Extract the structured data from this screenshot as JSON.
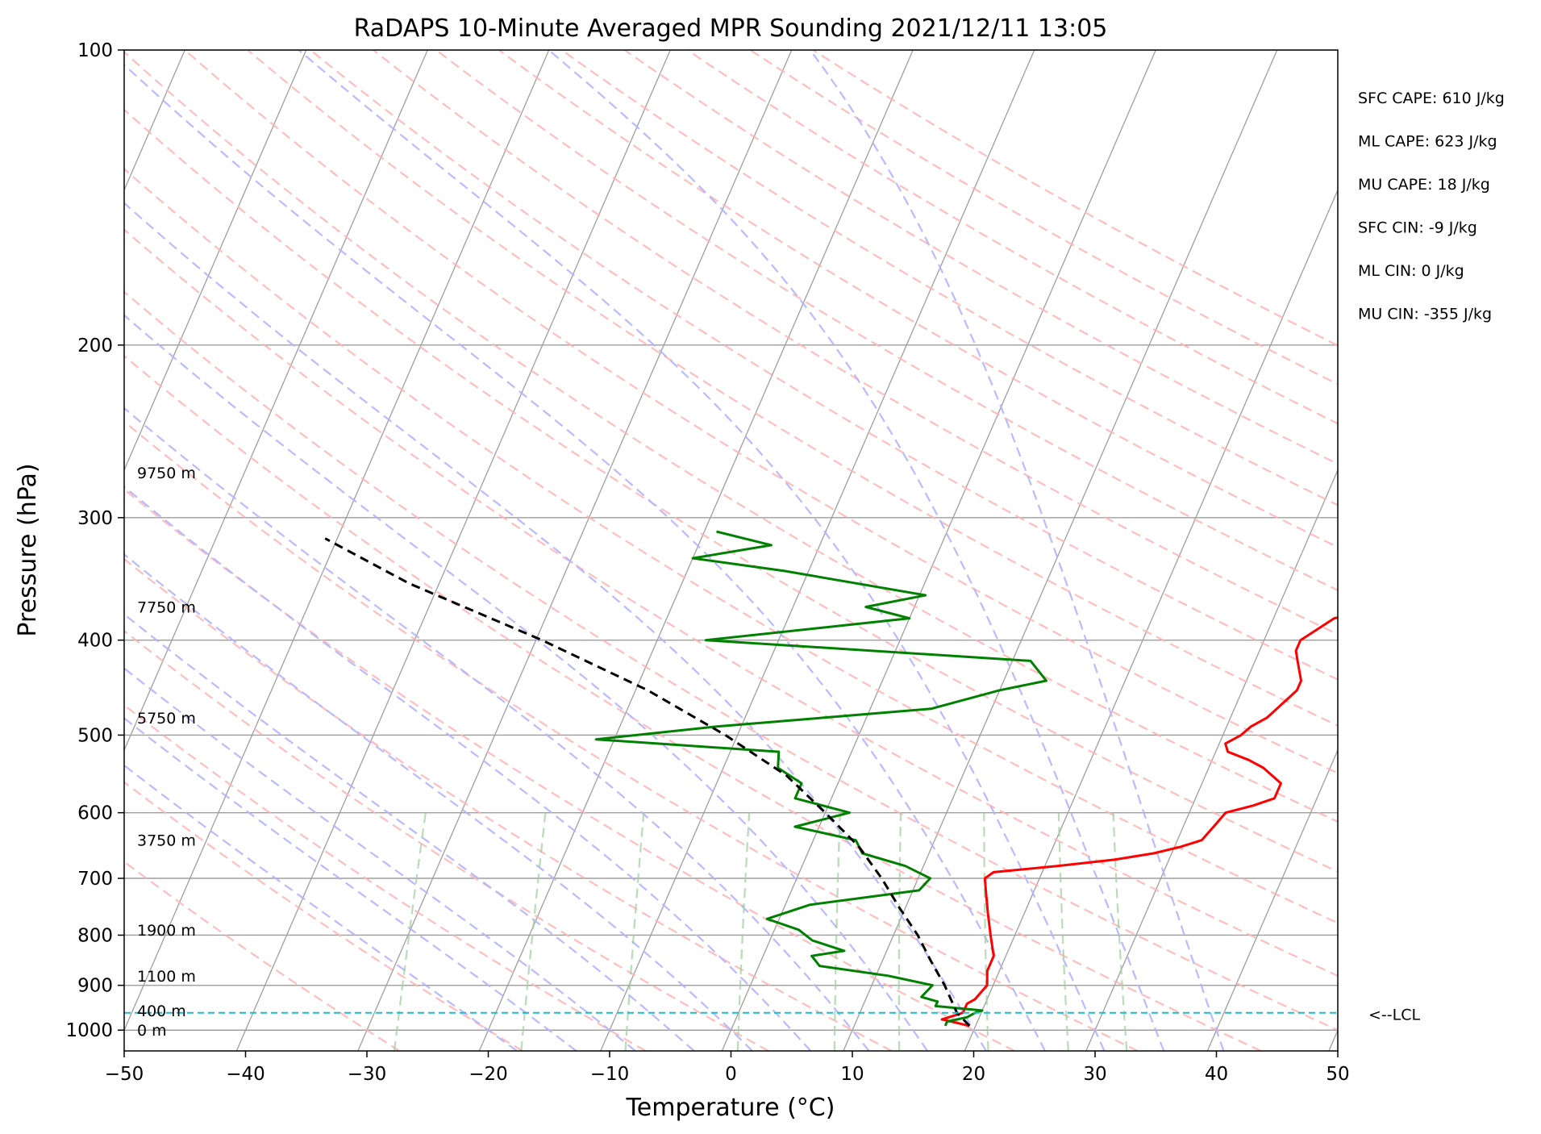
{
  "chart_data": {
    "type": "line",
    "subtype": "skew-T log-p diagram",
    "title": "RaDAPS 10-Minute Averaged MPR Sounding 2021/12/11 13:05",
    "xlabel": "Temperature (°C)",
    "ylabel": "Pressure (hPa)",
    "xlim": [
      -50,
      50
    ],
    "ylim": [
      1050,
      100
    ],
    "y_scale": "log",
    "grid": true,
    "x_ticks": [
      -50,
      -40,
      -30,
      -20,
      -10,
      0,
      10,
      20,
      30,
      40,
      50
    ],
    "x_tick_labels": [
      "−50",
      "−40",
      "−30",
      "−20",
      "−10",
      "0",
      "10",
      "20",
      "30",
      "40",
      "50"
    ],
    "y_ticks": [
      1000,
      900,
      800,
      700,
      600,
      500,
      400,
      300,
      200,
      100
    ],
    "y_tick_labels": [
      "1000",
      "900",
      "800",
      "700",
      "600",
      "500",
      "400",
      "300",
      "200",
      "100"
    ],
    "height_labels": [
      {
        "p": 1000,
        "text": "0 m"
      },
      {
        "p": 955,
        "text": "400 m"
      },
      {
        "p": 880,
        "text": "1100 m"
      },
      {
        "p": 790,
        "text": "1900 m"
      },
      {
        "p": 640,
        "text": "3750 m"
      },
      {
        "p": 480,
        "text": "5750 m"
      },
      {
        "p": 370,
        "text": "7750 m"
      },
      {
        "p": 270,
        "text": "9750 m"
      }
    ],
    "lcl": {
      "p": 960,
      "label": "<--LCL",
      "color": "#17becf"
    },
    "stats": [
      "SFC CAPE: 610 J/kg",
      "ML CAPE: 623 J/kg",
      "MU CAPE: 18 J/kg",
      "SFC CIN: -9 J/kg",
      "ML CIN: 0 J/kg",
      "MU CIN: -355 J/kg"
    ],
    "series": [
      {
        "color": "#ff0000",
        "p": [
          990,
          975,
          960,
          950,
          940,
          930,
          900,
          870,
          840,
          800,
          760,
          720,
          700,
          690,
          680,
          670,
          660,
          650,
          640,
          620,
          600,
          590,
          580,
          560,
          540,
          530,
          520,
          510,
          500,
          490,
          480,
          470,
          460,
          450,
          440,
          420,
          410,
          400,
          390,
          380,
          370
        ],
        "t": [
          19.5,
          17.0,
          18.5,
          18.5,
          18.5,
          19.0,
          19.5,
          19.0,
          19.0,
          18.0,
          17.0,
          16.0,
          15.5,
          16.0,
          21.0,
          25.5,
          28.5,
          30.5,
          32.0,
          32.5,
          33.0,
          35.0,
          36.5,
          36.5,
          34.5,
          33.0,
          31.0,
          30.5,
          31.5,
          32.0,
          33.0,
          33.5,
          34.0,
          34.5,
          34.5,
          33.5,
          33.0,
          33.0,
          34.0,
          35.0,
          39.0
        ]
      },
      {
        "color": "#008000",
        "p": [
          990,
          980,
          970,
          960,
          955,
          945,
          935,
          925,
          900,
          880,
          860,
          840,
          830,
          810,
          790,
          770,
          745,
          720,
          700,
          680,
          660,
          640,
          620,
          600,
          580,
          560,
          540,
          520,
          505,
          490,
          470,
          450,
          440,
          420,
          400,
          380,
          370,
          360,
          340,
          330,
          320,
          310
        ],
        "t": [
          17.5,
          17.5,
          19.0,
          19.5,
          20.0,
          16.0,
          16.0,
          14.5,
          15.0,
          11.0,
          5.0,
          4.0,
          6.5,
          3.5,
          2.0,
          -1.0,
          2.0,
          10.5,
          11.0,
          8.5,
          4.5,
          3.5,
          -2.0,
          2.0,
          -3.0,
          -3.0,
          -5.5,
          -6.0,
          -21.5,
          -12.0,
          5.0,
          10.0,
          13.5,
          11.5,
          -16.0,
          0.0,
          -4.0,
          0.5,
          -12.0,
          -20.0,
          -14.0,
          -19.0
        ]
      },
      {
        "color": "#000000",
        "style": "dashed",
        "p": [
          990,
          960,
          900,
          850,
          800,
          750,
          700,
          650,
          600,
          550,
          500,
          450,
          400,
          350,
          315
        ],
        "t": [
          19.5,
          18.0,
          16.0,
          14.0,
          12.0,
          9.5,
          7.0,
          4.0,
          0.0,
          -4.5,
          -11.0,
          -19.0,
          -29.5,
          -42.5,
          -51.0
        ]
      }
    ]
  }
}
